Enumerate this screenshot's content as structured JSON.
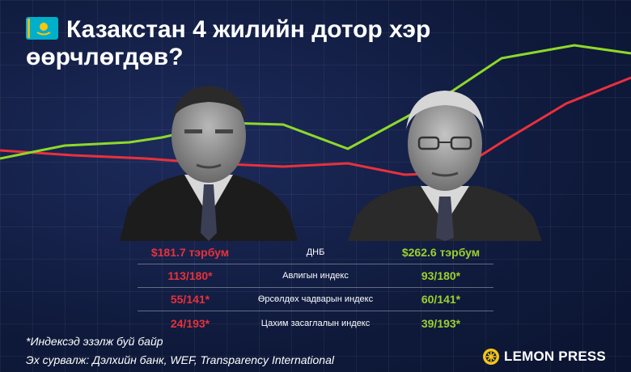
{
  "title": {
    "flag": "kazakhstan-flag",
    "line1": "Казакстан 4 жилийн дотор хэр",
    "line2": "өөрчлөгдөв?"
  },
  "colors": {
    "background": "#0f1a3c",
    "left_accent": "#e8313c",
    "right_accent": "#9cd12e"
  },
  "stats": [
    {
      "left": "$181.7 тэрбум",
      "label": "ДНБ",
      "right": "$262.6 тэрбум"
    },
    {
      "left": "113/180*",
      "label": "Авлигын индекс",
      "right": "93/180*"
    },
    {
      "left": "55/141*",
      "label": "Өрсөлдөх чадварын индекс",
      "right": "60/141*"
    },
    {
      "left": "24/193*",
      "label": "Цахим засаглалын индекс",
      "right": "39/193*"
    }
  ],
  "footnote": "*Индексэд эзэлж буй байр",
  "source": "Эх сурвалж: Дэлхийн банк, WEF, Transparency International",
  "brand": {
    "logo": "lemon-icon",
    "name": "LEMON PRESS"
  }
}
